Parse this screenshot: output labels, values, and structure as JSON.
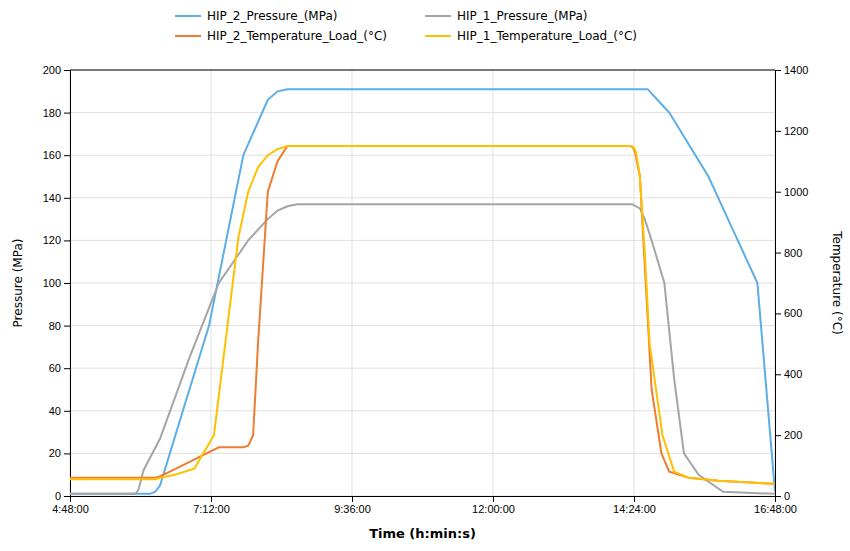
{
  "chart_data": {
    "type": "line",
    "xlabel": "Time (h:min:s)",
    "ylabel": "Pressure (MPa)",
    "y2label": "Temperature (°C)",
    "xlim": [
      288,
      1008
    ],
    "xticks": [
      {
        "value": 288,
        "label": "4:48:00"
      },
      {
        "value": 432,
        "label": "7:12:00"
      },
      {
        "value": 576,
        "label": "9:36:00"
      },
      {
        "value": 720,
        "label": "12:00:00"
      },
      {
        "value": 864,
        "label": "14:24:00"
      },
      {
        "value": 1008,
        "label": "16:48:00"
      }
    ],
    "ylim": [
      0,
      200
    ],
    "yticks": [
      0,
      20,
      40,
      60,
      80,
      100,
      120,
      140,
      160,
      180,
      200
    ],
    "y2lim": [
      0,
      1400
    ],
    "y2ticks": [
      0,
      200,
      400,
      600,
      800,
      1000,
      1200,
      1400
    ],
    "grid": true,
    "legend": "top",
    "series": [
      {
        "name": "HIP_2_Pressure_(MPa)",
        "color": "#5baee8",
        "x": [
          288,
          370,
          375,
          380,
          430,
          465,
          490,
          500,
          510,
          515,
          520,
          570,
          600,
          660,
          720,
          780,
          840,
          862,
          863,
          864,
          870,
          878,
          890,
          900,
          920,
          940,
          960,
          990,
          1008
        ],
        "values": [
          1,
          1,
          2,
          5,
          80,
          160,
          186,
          190,
          191,
          191,
          191,
          191,
          191,
          191,
          191,
          191,
          191,
          191,
          191,
          191,
          191,
          191,
          185,
          180,
          165,
          150,
          130,
          100,
          2
        ]
      },
      {
        "name": "HIP_1_Pressure_(MPa)",
        "color": "#a5a5a5",
        "x": [
          288,
          355,
          358,
          363,
          380,
          410,
          440,
          470,
          490,
          500,
          510,
          520,
          570,
          660,
          720,
          780,
          840,
          862,
          870,
          875,
          882,
          895,
          905,
          915,
          930,
          955,
          1008
        ],
        "values": [
          1,
          1,
          3,
          12,
          27,
          65,
          100,
          120,
          130,
          134,
          136,
          137,
          137,
          137,
          137,
          137,
          137,
          137,
          135,
          130,
          120,
          100,
          55,
          20,
          10,
          2,
          1
        ]
      },
      {
        "name": "HIP_2_Temperature_Load_(°C)",
        "color": "#ed7d31",
        "axis": "y2",
        "x": [
          288,
          375,
          380,
          390,
          440,
          465,
          470,
          475,
          480,
          490,
          500,
          510,
          570,
          660,
          720,
          780,
          840,
          860,
          862,
          863,
          865,
          870,
          876,
          882,
          892,
          900,
          920,
          950,
          1008
        ],
        "values": [
          60,
          60,
          65,
          80,
          160,
          160,
          165,
          200,
          500,
          1000,
          1100,
          1150,
          1150,
          1150,
          1150,
          1150,
          1150,
          1150,
          1148,
          1145,
          1130,
          1050,
          700,
          350,
          140,
          80,
          60,
          50,
          40
        ]
      },
      {
        "name": "HIP_1_Temperature_Load_(°C)",
        "color": "#ffc000",
        "axis": "y2",
        "x": [
          288,
          375,
          380,
          395,
          415,
          435,
          460,
          470,
          480,
          490,
          500,
          510,
          570,
          660,
          720,
          780,
          840,
          860,
          862,
          864,
          866,
          870,
          875,
          880,
          893,
          905,
          920,
          950,
          1008
        ],
        "values": [
          55,
          55,
          60,
          70,
          90,
          200,
          850,
          1000,
          1080,
          1120,
          1140,
          1150,
          1150,
          1150,
          1150,
          1150,
          1150,
          1150,
          1148,
          1145,
          1130,
          1050,
          800,
          500,
          200,
          80,
          60,
          50,
          40
        ]
      }
    ]
  }
}
